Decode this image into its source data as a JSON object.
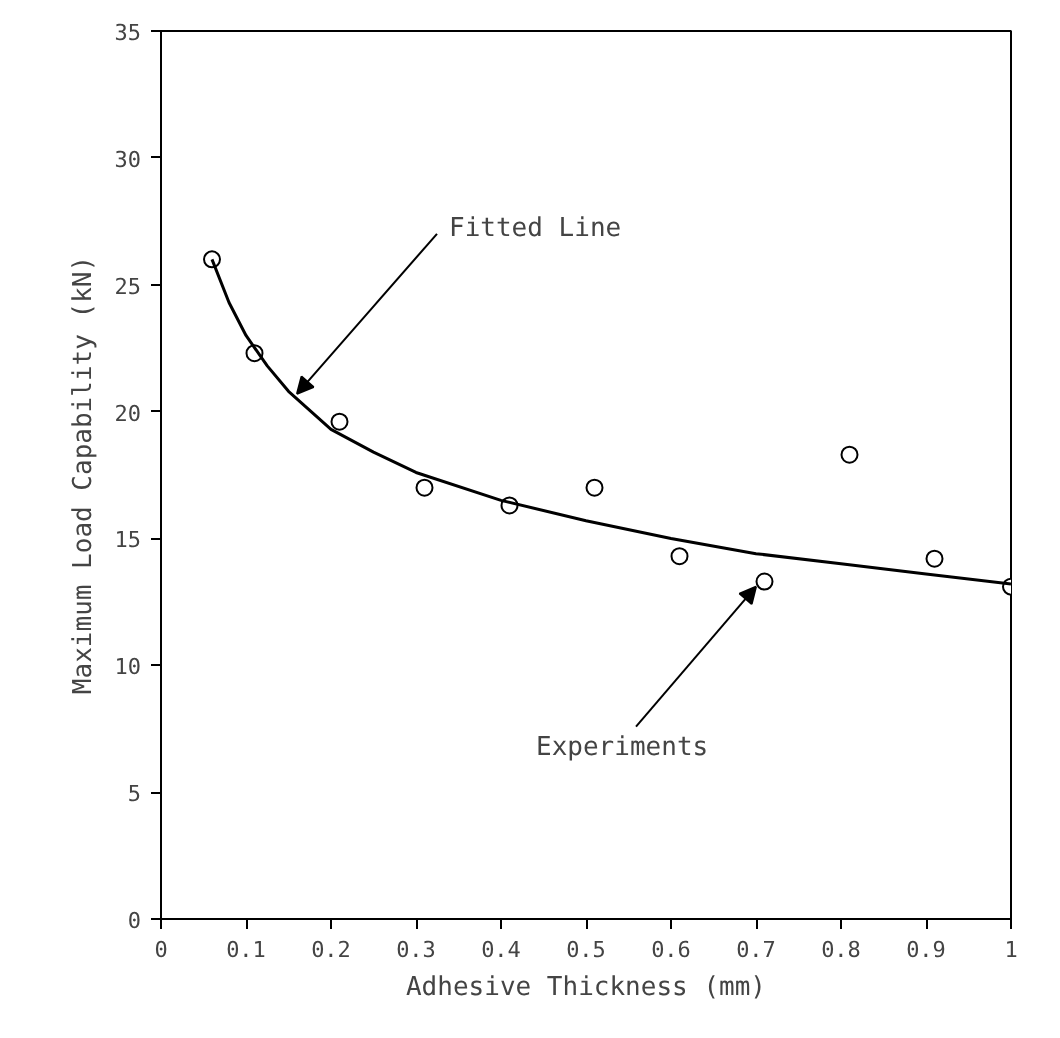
{
  "chart_data": {
    "type": "scatter",
    "xlabel": "Adhesive Thickness (mm)",
    "ylabel": "Maximum Load Capability (kN)",
    "xlim": [
      0,
      1
    ],
    "ylim": [
      0,
      35
    ],
    "xticks": [
      0,
      0.1,
      0.2,
      0.3,
      0.4,
      0.5,
      0.6,
      0.7,
      0.8,
      0.9,
      1
    ],
    "yticks": [
      0,
      5,
      10,
      15,
      20,
      25,
      30,
      35
    ],
    "grid": false,
    "series": [
      {
        "marker": "circle",
        "color": "#000000",
        "x": [
          0.06,
          0.11,
          0.21,
          0.31,
          0.41,
          0.51,
          0.61,
          0.71,
          0.81,
          0.91,
          1.0
        ],
        "values": [
          26,
          22.3,
          19.6,
          17,
          16.3,
          17,
          14.3,
          13.3,
          18.3,
          14.2,
          13.1
        ]
      },
      {
        "type": "line",
        "marker": "none",
        "line_style": "solid",
        "color": "#000000",
        "x": [
          0.06,
          0.08,
          0.1,
          0.125,
          0.15,
          0.2,
          0.25,
          0.3,
          0.4,
          0.5,
          0.6,
          0.7,
          0.8,
          0.9,
          1.0
        ],
        "values": [
          26,
          24.3,
          23,
          21.8,
          20.8,
          19.3,
          18.4,
          17.6,
          16.5,
          15.7,
          15,
          14.4,
          14,
          13.6,
          13.2
        ]
      }
    ],
    "annotations": [
      {
        "text": "Fitted Line",
        "x": 0.16,
        "y": 20.7
      },
      {
        "text": "Experiments",
        "x": 0.7,
        "y": 13.1
      }
    ]
  }
}
